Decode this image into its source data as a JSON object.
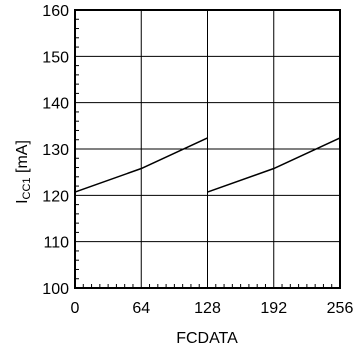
{
  "chart_data": {
    "type": "line",
    "xlabel": "FCDATA",
    "ylabel": "I",
    "ylabel_sub": "CC1",
    "ylabel_unit": " [mA]",
    "xlim": [
      0,
      256
    ],
    "ylim": [
      100,
      160
    ],
    "x_ticks": [
      0,
      64,
      128,
      192,
      256
    ],
    "x_tick_labels": [
      "0",
      "64",
      "128",
      "192",
      "256"
    ],
    "y_ticks": [
      100,
      110,
      120,
      130,
      140,
      150,
      160
    ],
    "y_tick_labels": [
      "100",
      "110",
      "120",
      "130",
      "140",
      "150",
      "160"
    ],
    "grid": true,
    "series": [
      {
        "x": [
          0,
          64,
          128
        ],
        "y": [
          120.7,
          125.8,
          132.4
        ]
      },
      {
        "x": [
          128,
          192,
          256
        ],
        "y": [
          120.7,
          125.8,
          132.4
        ]
      }
    ],
    "line_color": "#000000"
  }
}
